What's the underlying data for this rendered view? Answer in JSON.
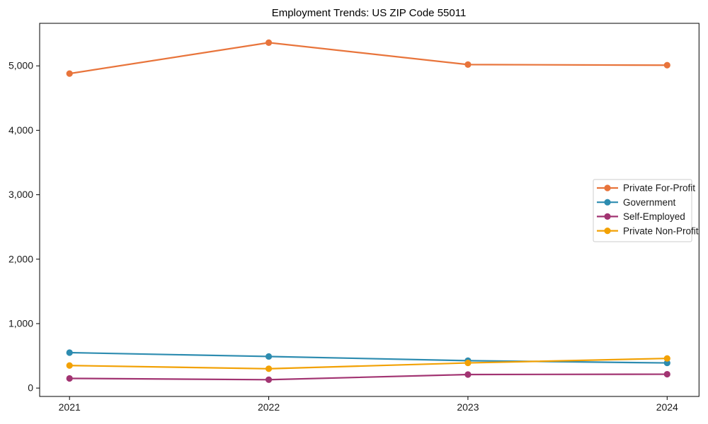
{
  "chart_data": {
    "type": "line",
    "title": "Employment Trends: US ZIP Code 55011",
    "xlabel": "",
    "ylabel": "",
    "x": [
      2021,
      2022,
      2023,
      2024
    ],
    "x_tick_labels": [
      "2021",
      "2022",
      "2023",
      "2024"
    ],
    "y_tick_values": [
      0,
      1000,
      2000,
      3000,
      4000,
      5000
    ],
    "y_tick_labels": [
      "0",
      "1,000",
      "2,000",
      "3,000",
      "4,000",
      "5,000"
    ],
    "xlim": [
      2020.85,
      2024.16
    ],
    "ylim": [
      -130,
      5660
    ],
    "grid": false,
    "legend": {
      "position": "center-right",
      "border_color": "#cccccc",
      "background": "#ffffff"
    },
    "frame_color": "#000000",
    "series": [
      {
        "name": "Private For-Profit",
        "color": "#E8743B",
        "values": [
          4880,
          5360,
          5020,
          5010
        ]
      },
      {
        "name": "Government",
        "color": "#2D8CB0",
        "values": [
          550,
          490,
          425,
          390
        ]
      },
      {
        "name": "Self-Employed",
        "color": "#A23472",
        "values": [
          150,
          130,
          210,
          215
        ]
      },
      {
        "name": "Private Non-Profit",
        "color": "#F2A104",
        "values": [
          350,
          300,
          390,
          460
        ]
      }
    ]
  }
}
